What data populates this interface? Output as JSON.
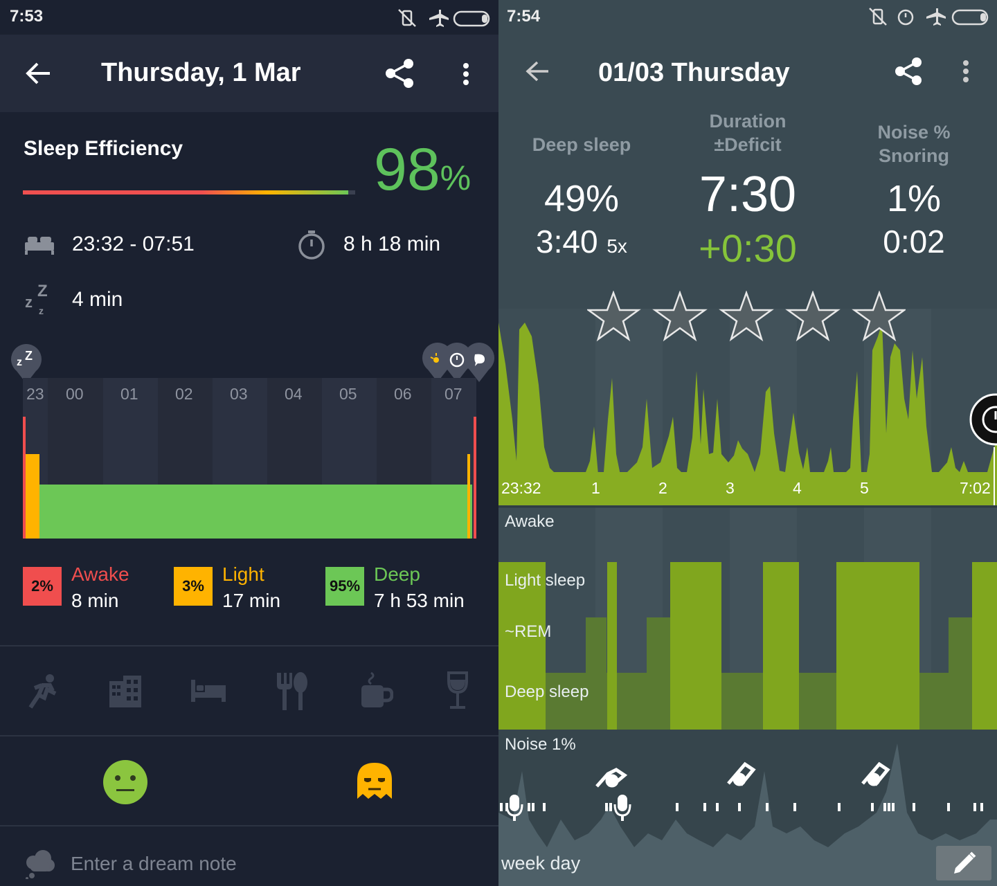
{
  "left": {
    "status": {
      "time": "7:53"
    },
    "appbar": {
      "title": "Thursday, 1 Mar",
      "back_icon": "arrow-left-icon",
      "share_icon": "share-icon",
      "menu_icon": "more-vert-icon"
    },
    "efficiency": {
      "label": "Sleep Efficiency",
      "value": "98",
      "unit": "%",
      "value_color": "#5ec25c"
    },
    "times": {
      "range": "23:32 - 07:51",
      "duration": "8 h 18 min",
      "latency": "4 min"
    },
    "hours": [
      "23",
      "00",
      "01",
      "02",
      "03",
      "04",
      "05",
      "06",
      "07"
    ],
    "legend": [
      {
        "pct": "2%",
        "name": "Awake",
        "value": "8 min",
        "color": "#f04e4e"
      },
      {
        "pct": "3%",
        "name": "Light",
        "value": "17 min",
        "color": "#ffb300"
      },
      {
        "pct": "95%",
        "name": "Deep",
        "value": "7 h 53 min",
        "color": "#6cc756"
      }
    ],
    "tags": [
      "running-icon",
      "office-building-icon",
      "bed-icon",
      "food-icon",
      "coffee-icon",
      "wine-icon"
    ],
    "moods": [
      "neutral-face-icon",
      "ghost-icon"
    ],
    "dream_note": {
      "placeholder": "Enter a dream note"
    }
  },
  "right": {
    "status": {
      "time": "7:54"
    },
    "appbar": {
      "title": "01/03 Thursday"
    },
    "stats": {
      "deep": {
        "head": "Deep sleep",
        "pct": "49%",
        "time": "3:40",
        "count": "5x"
      },
      "duration": {
        "head1": "Duration",
        "head2": "±Deficit",
        "value": "7:30",
        "deficit": "+0:30",
        "deficit_color": "#86c43a"
      },
      "noise": {
        "head1": "Noise %",
        "head2": "Snoring",
        "pct": "1%",
        "time": "0:02"
      }
    },
    "rating": {
      "stars": 5
    },
    "axis": [
      "23:32",
      "1",
      "2",
      "3",
      "4",
      "5",
      "7:02"
    ],
    "hypnogram": {
      "awake": "Awake",
      "light": "Light sleep",
      "rem": "~REM",
      "deep": "Deep sleep"
    },
    "noise_label": "Noise 1%",
    "week_day": "week day",
    "edit_icon": "pencil-icon"
  }
}
